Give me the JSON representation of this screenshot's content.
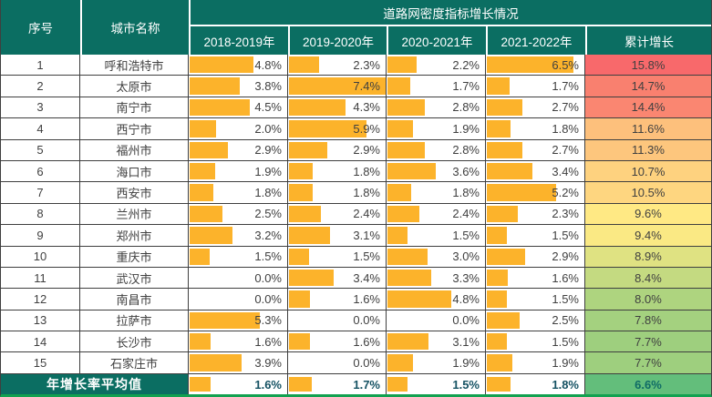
{
  "header": {
    "serial": "序号",
    "city_name": "城市名称",
    "title": "道路网密度指标增长情况",
    "years": [
      "2018-2019年",
      "2019-2020年",
      "2020-2021年",
      "2021-2022年"
    ],
    "cumulative": "累计增长"
  },
  "average": {
    "label": "年增长率平均值"
  },
  "colors": {
    "header_teal": "#0B6E62",
    "bar_orange": "#FCB32B",
    "grid_line": "#3F3F3F",
    "bottom_border_green": "#12A150",
    "value_text": "#404040",
    "avg_value_text": "#155263",
    "avg_cumulative_text": "#0F6B66"
  },
  "chart_data": {
    "type": "table",
    "title": "道路网密度指标增长情况",
    "columns": [
      "序号",
      "城市名称",
      "2018-2019年",
      "2019-2020年",
      "2020-2021年",
      "2021-2022年",
      "累计增长"
    ],
    "unit": "%",
    "bar_color": "#FCB32B",
    "bar_scale_max": 7.4,
    "cumulative_color_scale": [
      "#F8696B",
      "#FFEB84",
      "#63BE7B"
    ],
    "rows": [
      {
        "no": "1",
        "city": "呼和浩特市",
        "values": [
          4.8,
          2.3,
          2.2,
          6.5
        ],
        "cumulative": 15.8,
        "cum_color": "#F8696B"
      },
      {
        "no": "2",
        "city": "太原市",
        "values": [
          3.8,
          7.4,
          1.7,
          1.7
        ],
        "cumulative": 14.7,
        "cum_color": "#F9806F"
      },
      {
        "no": "3",
        "city": "南宁市",
        "values": [
          4.5,
          4.3,
          2.8,
          2.7
        ],
        "cumulative": 14.4,
        "cum_color": "#FA8671"
      },
      {
        "no": "4",
        "city": "西宁市",
        "values": [
          2.0,
          5.9,
          1.9,
          1.8
        ],
        "cumulative": 11.6,
        "cum_color": "#FDC07C"
      },
      {
        "no": "5",
        "city": "福州市",
        "values": [
          2.9,
          2.9,
          2.8,
          2.7
        ],
        "cumulative": 11.3,
        "cum_color": "#FDC67D"
      },
      {
        "no": "6",
        "city": "海口市",
        "values": [
          1.9,
          1.8,
          3.6,
          3.4
        ],
        "cumulative": 10.7,
        "cum_color": "#FED27F"
      },
      {
        "no": "7",
        "city": "西安市",
        "values": [
          1.8,
          1.8,
          1.8,
          5.2
        ],
        "cumulative": 10.5,
        "cum_color": "#FED680"
      },
      {
        "no": "8",
        "city": "兰州市",
        "values": [
          2.5,
          2.4,
          2.4,
          2.3
        ],
        "cumulative": 9.6,
        "cum_color": "#FFE984"
      },
      {
        "no": "9",
        "city": "郑州市",
        "values": [
          3.2,
          3.1,
          1.5,
          1.5
        ],
        "cumulative": 9.4,
        "cum_color": "#FAE984"
      },
      {
        "no": "10",
        "city": "重庆市",
        "values": [
          1.5,
          1.5,
          3.0,
          2.9
        ],
        "cumulative": 8.9,
        "cum_color": "#DFE282"
      },
      {
        "no": "11",
        "city": "武汉市",
        "values": [
          0.0,
          3.4,
          3.3,
          1.6
        ],
        "cumulative": 8.4,
        "cum_color": "#C4DA81"
      },
      {
        "no": "12",
        "city": "南昌市",
        "values": [
          0.0,
          1.6,
          4.8,
          1.5
        ],
        "cumulative": 8.0,
        "cum_color": "#AED47F"
      },
      {
        "no": "13",
        "city": "拉萨市",
        "values": [
          5.3,
          0.0,
          0.0,
          2.5
        ],
        "cumulative": 7.8,
        "cum_color": "#A4D17F"
      },
      {
        "no": "14",
        "city": "长沙市",
        "values": [
          1.6,
          1.6,
          3.1,
          1.5
        ],
        "cumulative": 7.7,
        "cum_color": "#9ECF7E"
      },
      {
        "no": "15",
        "city": "石家庄市",
        "values": [
          3.9,
          0.0,
          1.9,
          1.9
        ],
        "cumulative": 7.7,
        "cum_color": "#9ECF7E"
      }
    ],
    "average_row": {
      "label": "年增长率平均值",
      "values": [
        1.6,
        1.7,
        1.5,
        1.8
      ],
      "cumulative": 6.6,
      "cum_color": "#63BE7B"
    }
  }
}
